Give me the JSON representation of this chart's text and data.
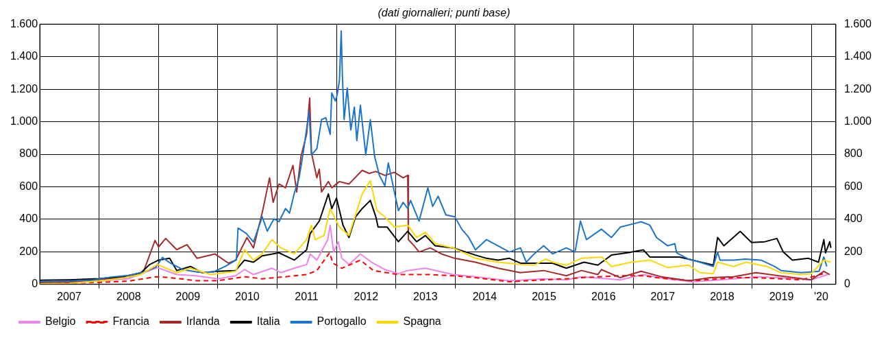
{
  "chart_data": {
    "type": "line",
    "subtitle": "(dati giornalieri; punti base)",
    "xlim": [
      "2007-01-01",
      "2020-05-31"
    ],
    "xticks": [
      {
        "value": "2007-07-01",
        "label": "2007"
      },
      {
        "value": "2008-01-01",
        "label": null
      },
      {
        "value": "2008-07-01",
        "label": "2008"
      },
      {
        "value": "2009-01-01",
        "label": null
      },
      {
        "value": "2009-07-01",
        "label": "2009"
      },
      {
        "value": "2010-01-01",
        "label": null
      },
      {
        "value": "2010-07-01",
        "label": "2010"
      },
      {
        "value": "2011-01-01",
        "label": null
      },
      {
        "value": "2011-07-01",
        "label": "2011"
      },
      {
        "value": "2012-01-01",
        "label": null
      },
      {
        "value": "2012-07-01",
        "label": "2012"
      },
      {
        "value": "2013-01-01",
        "label": null
      },
      {
        "value": "2013-07-01",
        "label": "2013"
      },
      {
        "value": "2014-01-01",
        "label": null
      },
      {
        "value": "2014-07-01",
        "label": "2014"
      },
      {
        "value": "2015-01-01",
        "label": null
      },
      {
        "value": "2015-07-01",
        "label": "2015"
      },
      {
        "value": "2016-01-01",
        "label": null
      },
      {
        "value": "2016-07-01",
        "label": "2016"
      },
      {
        "value": "2017-01-01",
        "label": null
      },
      {
        "value": "2017-07-01",
        "label": "2017"
      },
      {
        "value": "2018-01-01",
        "label": null
      },
      {
        "value": "2018-07-01",
        "label": "2018"
      },
      {
        "value": "2019-01-01",
        "label": null
      },
      {
        "value": "2019-07-01",
        "label": "2019"
      },
      {
        "value": "2020-01-01",
        "label": null
      },
      {
        "value": "2020-03-01",
        "label": "'20"
      }
    ],
    "ylim": [
      0,
      1600
    ],
    "yticks": [
      0,
      200,
      400,
      600,
      800,
      {
        "value": 1000,
        "label": "1.000"
      },
      {
        "value": 1200,
        "label": "1.200"
      },
      {
        "value": 1400,
        "label": "1.400"
      },
      {
        "value": 1600,
        "label": "1.600"
      }
    ],
    "y2lim": [
      0,
      1600
    ],
    "y2ticks": [
      0,
      200,
      400,
      600,
      800,
      {
        "value": 1000,
        "label": "1.000"
      },
      {
        "value": 1200,
        "label": "1.200"
      },
      {
        "value": 1400,
        "label": "1.400"
      },
      {
        "value": 1600,
        "label": "1.600"
      }
    ],
    "grid": true,
    "legend": "bottom",
    "marker": "none",
    "line_style": "solid",
    "series": [
      {
        "name": "Belgio",
        "color": "#ee82ee",
        "x": [
          "2007-01-01",
          "2007-07-01",
          "2008-01-01",
          "2008-07-01",
          "2008-12-25",
          "2009-04-23",
          "2009-08-15",
          "2010-01-01",
          "2010-04-20",
          "2010-06-14",
          "2010-08-08",
          "2010-11-30",
          "2011-01-23",
          "2011-04-16",
          "2011-07-01",
          "2011-07-23",
          "2011-09-02",
          "2011-11-08",
          "2011-11-23",
          "2011-12-14",
          "2012-01-12",
          "2012-02-03",
          "2012-03-18",
          "2012-05-27",
          "2012-08-04",
          "2012-10-24",
          "2013-01-16",
          "2013-03-14",
          "2013-07-01",
          "2013-12-18",
          "2014-05-05",
          "2014-11-30",
          "2015-06-29",
          "2015-11-15",
          "2016-02-17",
          "2016-10-12",
          "2017-03-03",
          "2017-07-20",
          "2018-01-01",
          "2018-09-10",
          "2019-01-26",
          "2019-06-14",
          "2020-01-01",
          "2020-04-12"
        ],
        "values": [
          8,
          10,
          20,
          35,
          103,
          60,
          53,
          34,
          53,
          91,
          60,
          99,
          72,
          99,
          122,
          187,
          149,
          275,
          364,
          199,
          262,
          160,
          122,
          187,
          136,
          91,
          66,
          85,
          99,
          60,
          47,
          22,
          34,
          28,
          47,
          28,
          60,
          34,
          16,
          34,
          47,
          41,
          28,
          60
        ]
      },
      {
        "name": "Francia",
        "color": "#ff0000",
        "line_style": "dashed",
        "x": [
          "2007-01-01",
          "2007-07-01",
          "2008-01-01",
          "2008-07-01",
          "2008-12-18",
          "2009-03-14",
          "2009-08-26",
          "2010-01-01",
          "2010-06-14",
          "2010-10-01",
          "2011-02-21",
          "2011-07-01",
          "2011-09-02",
          "2011-11-19",
          "2011-12-10",
          "2012-02-03",
          "2012-03-18",
          "2012-05-27",
          "2012-08-15",
          "2013-01-16",
          "2013-07-31",
          "2013-12-18",
          "2014-05-05",
          "2014-11-30",
          "2015-06-29",
          "2015-11-15",
          "2016-02-17",
          "2016-10-12",
          "2017-03-03",
          "2017-05-23",
          "2018-01-01",
          "2018-09-10",
          "2019-01-26",
          "2019-11-01",
          "2020-03-18"
        ],
        "values": [
          5,
          8,
          12,
          20,
          47,
          41,
          22,
          22,
          47,
          34,
          47,
          60,
          85,
          194,
          130,
          99,
          118,
          149,
          85,
          60,
          60,
          53,
          41,
          16,
          28,
          34,
          41,
          53,
          53,
          41,
          22,
          41,
          41,
          28,
          66
        ]
      },
      {
        "name": "Irlanda",
        "color": "#a52a2a",
        "x": [
          "2007-01-01",
          "2007-07-01",
          "2008-01-01",
          "2008-07-01",
          "2008-10-01",
          "2008-12-10",
          "2009-01-01",
          "2009-02-14",
          "2009-04-23",
          "2009-06-25",
          "2009-08-26",
          "2009-12-14",
          "2010-03-07",
          "2010-04-20",
          "2010-06-29",
          "2010-08-08",
          "2010-10-01",
          "2010-11-15",
          "2010-12-07",
          "2011-01-12",
          "2011-02-21",
          "2011-04-08",
          "2011-05-01",
          "2011-05-27",
          "2011-07-01",
          "2011-07-20",
          "2011-07-31",
          "2011-09-02",
          "2011-09-17",
          "2011-10-01",
          "2011-11-12",
          "2011-12-03",
          "2012-01-19",
          "2012-03-18",
          "2012-06-07",
          "2012-07-20",
          "2012-08-30",
          "2012-10-24",
          "2012-12-22",
          "2013-02-14",
          "2013-03-14",
          "2013-03-18",
          "2013-04-23",
          "2013-05-23",
          "2013-07-31",
          "2013-10-08",
          "2013-12-29",
          "2014-05-05",
          "2014-09-21",
          "2015-02-06",
          "2015-06-29",
          "2015-11-15",
          "2016-02-17",
          "2016-05-27",
          "2016-06-18",
          "2016-10-12",
          "2017-02-17",
          "2017-06-21",
          "2017-12-07",
          "2018-04-20",
          "2018-09-10",
          "2019-01-26",
          "2019-06-14",
          "2020-01-01",
          "2020-03-18",
          "2020-04-23"
        ],
        "values": [
          12,
          15,
          30,
          45,
          80,
          270,
          230,
          282,
          213,
          244,
          160,
          187,
          130,
          149,
          288,
          224,
          441,
          655,
          504,
          617,
          594,
          731,
          568,
          784,
          922,
          1146,
          808,
          655,
          708,
          568,
          632,
          594,
          632,
          617,
          701,
          682,
          694,
          670,
          689,
          655,
          670,
          275,
          237,
          199,
          224,
          187,
          160,
          136,
          99,
          72,
          85,
          53,
          85,
          60,
          91,
          41,
          80,
          47,
          22,
          41,
          47,
          72,
          53,
          28,
          80,
          60
        ]
      },
      {
        "name": "Italia",
        "color": "#000000",
        "x": [
          "2007-01-01",
          "2007-07-01",
          "2008-01-01",
          "2008-06-07",
          "2008-09-13",
          "2008-11-08",
          "2009-01-01",
          "2009-03-10",
          "2009-04-23",
          "2009-07-16",
          "2009-09-24",
          "2010-01-01",
          "2010-04-20",
          "2010-06-14",
          "2010-08-08",
          "2010-10-01",
          "2011-01-12",
          "2011-04-16",
          "2011-07-01",
          "2011-07-23",
          "2011-09-17",
          "2011-11-12",
          "2011-12-03",
          "2012-01-01",
          "2012-02-10",
          "2012-03-18",
          "2012-04-27",
          "2012-06-07",
          "2012-07-27",
          "2012-08-30",
          "2012-09-13",
          "2012-11-08",
          "2013-01-16",
          "2013-03-14",
          "2013-05-08",
          "2013-07-01",
          "2013-08-30",
          "2013-12-18",
          "2014-05-05",
          "2014-07-12",
          "2014-09-21",
          "2014-11-30",
          "2015-02-06",
          "2015-06-29",
          "2015-08-23",
          "2015-11-15",
          "2016-03-03",
          "2016-05-27",
          "2016-08-19",
          "2016-11-26",
          "2017-03-03",
          "2017-04-12",
          "2017-07-20",
          "2017-10-12",
          "2018-01-01",
          "2018-05-08",
          "2018-06-03",
          "2018-07-12",
          "2018-10-20",
          "2018-12-29",
          "2019-03-21",
          "2019-06-03",
          "2019-07-12",
          "2019-09-06",
          "2019-12-14",
          "2020-02-14",
          "2020-03-18",
          "2020-03-28",
          "2020-04-23",
          "2020-04-30"
        ],
        "values": [
          25,
          28,
          35,
          50,
          70,
          122,
          149,
          160,
          85,
          110,
          72,
          80,
          85,
          149,
          136,
          175,
          194,
          149,
          212,
          313,
          389,
          556,
          466,
          530,
          364,
          288,
          415,
          466,
          516,
          415,
          352,
          352,
          262,
          326,
          262,
          300,
          237,
          224,
          180,
          160,
          149,
          160,
          130,
          130,
          130,
          99,
          136,
          118,
          180,
          194,
          212,
          168,
          168,
          168,
          149,
          118,
          288,
          237,
          326,
          257,
          262,
          282,
          199,
          149,
          160,
          136,
          275,
          194,
          262,
          224
        ]
      },
      {
        "name": "Portogallo",
        "color": "#1874cd",
        "x": [
          "2007-01-01",
          "2007-07-01",
          "2007-12-01",
          "2008-03-15",
          "2008-07-01",
          "2008-10-01",
          "2008-12-15",
          "2009-01-25",
          "2009-03-15",
          "2009-06-01",
          "2009-09-01",
          "2009-12-01",
          "2010-02-15",
          "2010-04-25",
          "2010-05-05",
          "2010-06-25",
          "2010-08-08",
          "2010-10-01",
          "2010-11-01",
          "2010-12-12",
          "2011-01-12",
          "2011-02-21",
          "2011-03-18",
          "2011-04-16",
          "2011-05-16",
          "2011-06-10",
          "2011-07-16",
          "2011-07-31",
          "2011-09-02",
          "2011-10-01",
          "2011-10-27",
          "2011-11-23",
          "2011-12-03",
          "2011-12-25",
          "2012-01-05",
          "2012-01-19",
          "2012-01-30",
          "2012-02-06",
          "2012-02-17",
          "2012-03-07",
          "2012-03-29",
          "2012-04-20",
          "2012-05-05",
          "2012-05-27",
          "2012-06-29",
          "2012-07-27",
          "2012-08-23",
          "2012-09-21",
          "2012-10-24",
          "2012-11-15",
          "2012-12-22",
          "2013-01-16",
          "2013-02-14",
          "2013-03-14",
          "2013-04-01",
          "2013-05-23",
          "2013-07-16",
          "2013-08-15",
          "2013-09-17",
          "2013-11-04",
          "2013-12-29",
          "2014-02-10",
          "2014-03-25",
          "2014-05-05",
          "2014-07-12",
          "2014-09-21",
          "2014-11-30",
          "2015-02-06",
          "2015-03-14",
          "2015-05-01",
          "2015-06-29",
          "2015-08-23",
          "2015-11-15",
          "2016-01-08",
          "2016-02-10",
          "2016-03-18",
          "2016-06-18",
          "2016-08-19",
          "2016-10-12",
          "2017-01-19",
          "2017-02-17",
          "2017-04-12",
          "2017-05-23",
          "2017-07-31",
          "2017-09-13",
          "2017-09-24",
          "2017-12-07",
          "2018-02-14",
          "2018-05-08",
          "2018-06-03",
          "2018-06-18",
          "2018-09-10",
          "2018-11-19",
          "2019-02-25",
          "2019-05-19",
          "2019-06-29",
          "2019-11-01",
          "2020-02-17",
          "2020-03-18",
          "2020-04-05"
        ],
        "values": [
          17,
          20,
          28,
          45,
          55,
          75,
          105,
          165,
          130,
          90,
          75,
          75,
          110,
          150,
          346,
          313,
          260,
          415,
          327,
          403,
          385,
          466,
          438,
          560,
          655,
          808,
          1063,
          796,
          834,
          1013,
          1025,
          922,
          1177,
          1127,
          1165,
          1253,
          1558,
          1291,
          1013,
          1208,
          949,
          1090,
          884,
          1101,
          796,
          1013,
          784,
          670,
          606,
          746,
          568,
          453,
          504,
          466,
          516,
          389,
          593,
          479,
          542,
          427,
          415,
          339,
          288,
          212,
          275,
          237,
          199,
          224,
          136,
          187,
          237,
          187,
          224,
          199,
          389,
          275,
          339,
          288,
          352,
          377,
          385,
          364,
          288,
          237,
          250,
          194,
          155,
          136,
          110,
          199,
          149,
          149,
          155,
          149,
          110,
          85,
          72,
          80,
          168,
          110
        ]
      },
      {
        "name": "Spagna",
        "color": "#ffd700",
        "x": [
          "2007-01-01",
          "2007-07-01",
          "2008-01-01",
          "2008-06-07",
          "2008-09-13",
          "2008-12-25",
          "2009-04-23",
          "2009-07-16",
          "2009-11-19",
          "2010-04-20",
          "2010-06-14",
          "2010-08-08",
          "2010-10-01",
          "2010-11-30",
          "2011-01-23",
          "2011-04-16",
          "2011-07-01",
          "2011-07-31",
          "2011-08-23",
          "2011-10-16",
          "2011-11-23",
          "2012-01-19",
          "2012-03-18",
          "2012-06-07",
          "2012-07-27",
          "2012-09-06",
          "2012-10-24",
          "2012-12-22",
          "2013-03-14",
          "2013-05-08",
          "2013-07-01",
          "2013-08-30",
          "2013-12-18",
          "2014-05-05",
          "2014-09-21",
          "2015-02-06",
          "2015-05-01",
          "2015-07-12",
          "2015-08-23",
          "2015-11-15",
          "2016-02-17",
          "2016-06-21",
          "2016-08-19",
          "2016-12-18",
          "2017-04-12",
          "2017-07-31",
          "2017-12-07",
          "2018-02-14",
          "2018-05-08",
          "2018-06-03",
          "2018-09-10",
          "2018-11-26",
          "2019-04-01",
          "2019-06-29",
          "2019-11-01",
          "2020-01-01",
          "2020-03-18",
          "2020-04-30"
        ],
        "values": [
          3,
          5,
          20,
          40,
          60,
          122,
          72,
          99,
          60,
          80,
          212,
          149,
          187,
          275,
          224,
          187,
          275,
          364,
          275,
          300,
          466,
          352,
          300,
          556,
          638,
          453,
          415,
          352,
          364,
          288,
          320,
          250,
          224,
          160,
          136,
          122,
          118,
          155,
          136,
          118,
          160,
          168,
          110,
          136,
          149,
          103,
          118,
          72,
          66,
          136,
          110,
          136,
          110,
          72,
          60,
          66,
          149,
          136
        ]
      }
    ]
  }
}
